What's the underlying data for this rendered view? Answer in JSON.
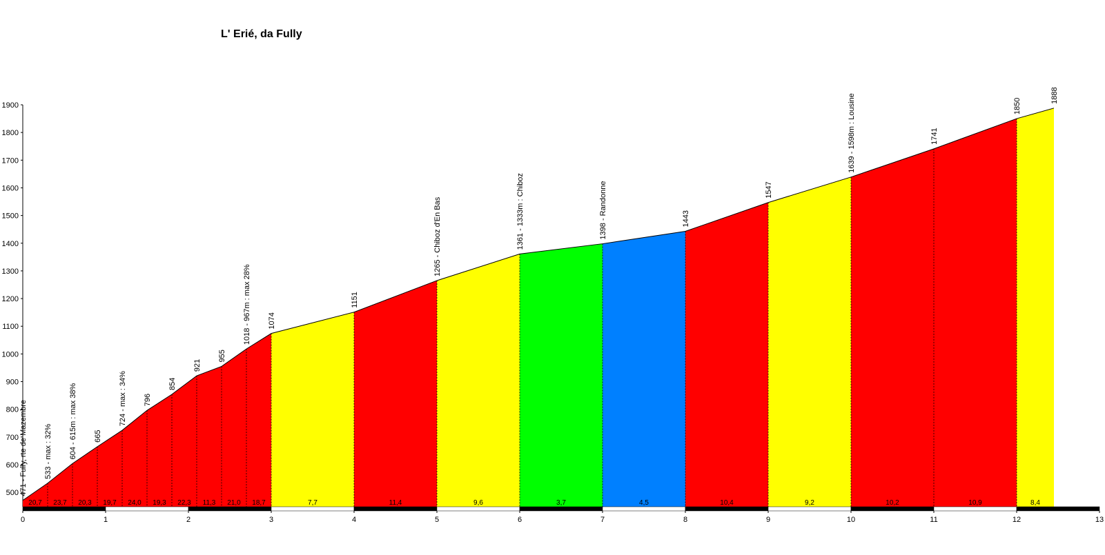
{
  "chart_data": {
    "type": "profile",
    "title": "L' Erié, da Fully",
    "x": [
      0,
      0.3,
      0.6,
      0.9,
      1.2,
      1.5,
      1.8,
      2.1,
      2.4,
      2.7,
      3,
      4,
      5,
      6,
      7,
      8,
      9,
      10,
      11,
      12,
      12.45
    ],
    "values": [
      471,
      533,
      604,
      665,
      724,
      796,
      854,
      921,
      955,
      1018,
      1074,
      1151,
      1265,
      1361,
      1398,
      1443,
      1547,
      1639,
      1741,
      1850,
      1888
    ],
    "value_labels": [
      "471 - Fully, rte de Mazembre",
      "533 - max : 32%",
      "604 - 615m : max 38%",
      "665",
      "724 - max : 34%",
      "796",
      "854",
      "921",
      "955",
      "1018 - 967m : max 28%",
      "1074",
      "1151",
      "1265 - Chiboz d'En Bas",
      "1361 - 1333m : Chiboz",
      "1398 - Randonne",
      "1443",
      "1547",
      "1639 - 1598m : Lousine",
      "1741",
      "1850",
      "1888"
    ],
    "gradients": [
      20.7,
      23.7,
      20.3,
      19.7,
      24.0,
      19.3,
      22.3,
      11.3,
      21.0,
      18.7,
      7.7,
      11.4,
      9.6,
      3.7,
      4.5,
      10.4,
      9.2,
      10.2,
      10.9,
      8.4
    ],
    "gradient_labels": [
      "20,7",
      "23,7",
      "20,3",
      "19,7",
      "24,0",
      "19,3",
      "22,3",
      "11,3",
      "21,0",
      "18,7",
      "7,7",
      "11,4",
      "9,6",
      "3,7",
      "4,5",
      "10,4",
      "9,2",
      "10,2",
      "10,9",
      "8,4"
    ],
    "segment_colors": [
      "#ff0000",
      "#ff0000",
      "#ff0000",
      "#ff0000",
      "#ff0000",
      "#ff0000",
      "#ff0000",
      "#ff0000",
      "#ff0000",
      "#ff0000",
      "#ffff00",
      "#ff0000",
      "#ffff00",
      "#00ff00",
      "#0080ff",
      "#ff0000",
      "#ffff00",
      "#ff0000",
      "#ff0000",
      "#ffff00"
    ],
    "xlim": [
      0,
      13
    ],
    "xticks": [
      0,
      1,
      2,
      3,
      4,
      5,
      6,
      7,
      8,
      9,
      10,
      11,
      12,
      13
    ],
    "ylim": [
      448,
      1900
    ],
    "yticks": [
      500,
      600,
      700,
      800,
      900,
      1000,
      1100,
      1200,
      1300,
      1400,
      1500,
      1600,
      1700,
      1800,
      1900
    ]
  }
}
